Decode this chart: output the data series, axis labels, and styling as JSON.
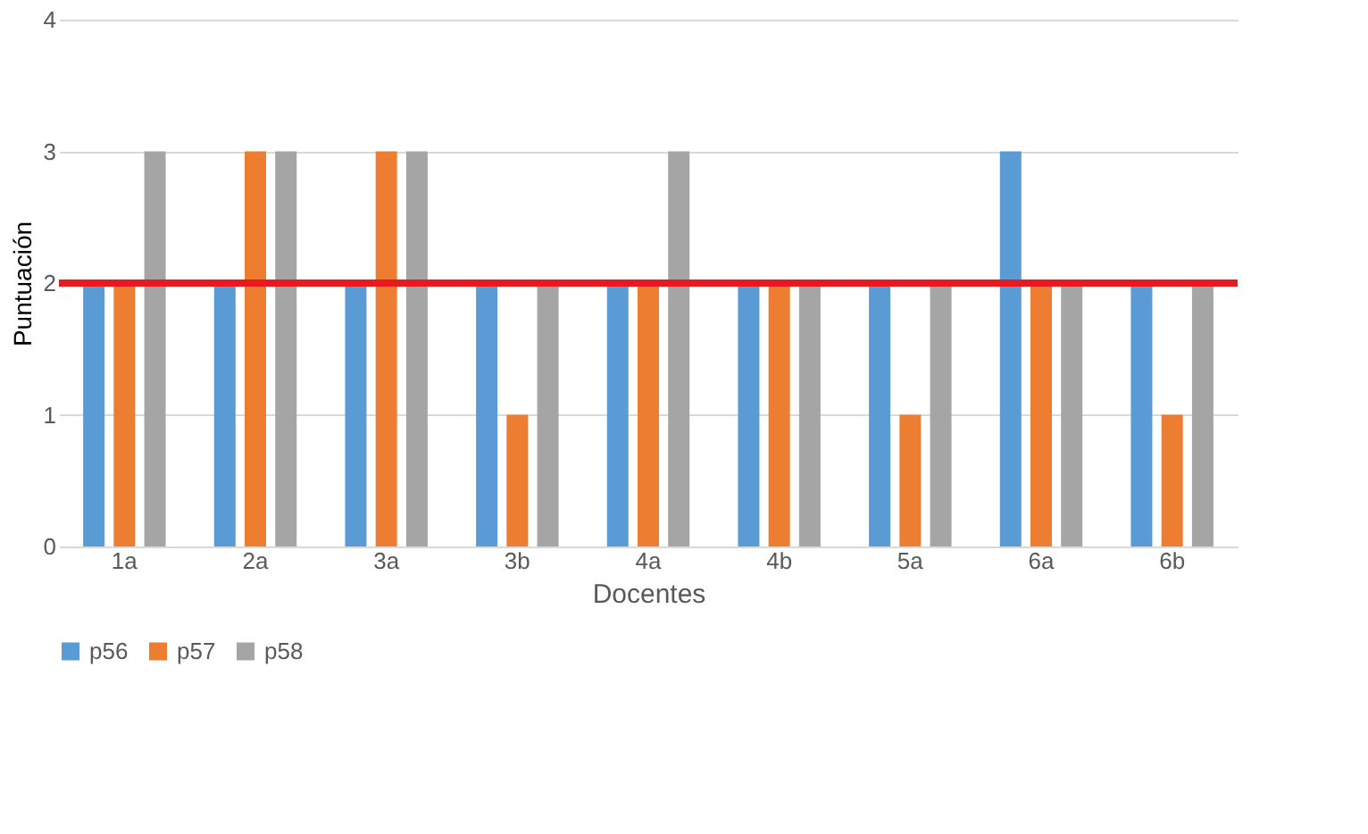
{
  "chart_data": {
    "type": "bar",
    "xlabel": "Docentes",
    "ylabel": "Puntuación",
    "categories": [
      "1a",
      "2a",
      "3a",
      "3b",
      "4a",
      "4b",
      "5a",
      "6a",
      "6b"
    ],
    "series": [
      {
        "name": "p56",
        "color": "#5b9bd5",
        "values": [
          2,
          2,
          2,
          2,
          2,
          2,
          2,
          3,
          2
        ]
      },
      {
        "name": "p57",
        "color": "#ed7d31",
        "values": [
          2,
          3,
          3,
          1,
          2,
          2,
          1,
          2,
          1
        ]
      },
      {
        "name": "p58",
        "color": "#a5a5a5",
        "values": [
          3,
          3,
          3,
          2,
          3,
          2,
          2,
          2,
          2
        ]
      }
    ],
    "ylim": [
      0,
      4
    ],
    "yticks": [
      0,
      1,
      2,
      3,
      4
    ],
    "grid": "y",
    "legend": "bottom",
    "ref_lines": [
      {
        "axis": "y",
        "value": 2,
        "color": "#e8191f"
      }
    ]
  }
}
